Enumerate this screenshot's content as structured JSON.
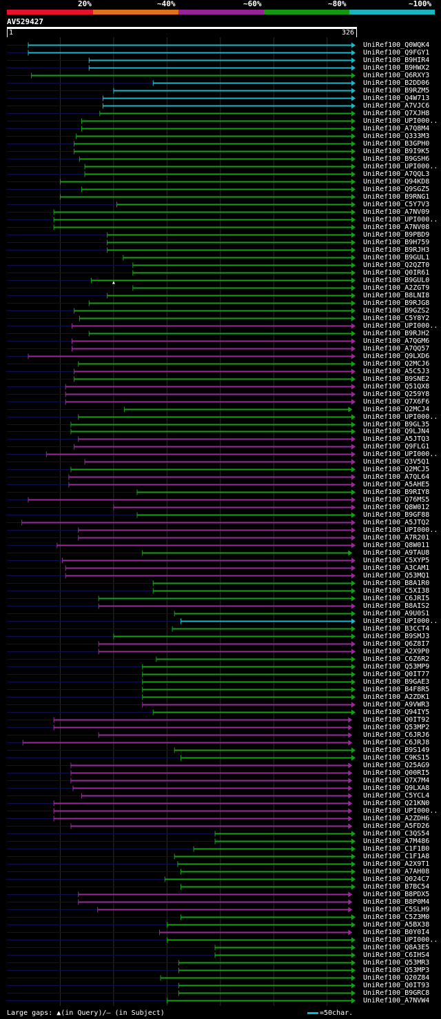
{
  "legend": [
    {
      "label": "20%",
      "color": "#e8102a"
    },
    {
      "label": "~40%",
      "color": "#e0701c"
    },
    {
      "label": "~60%",
      "color": "#992299"
    },
    {
      "label": "~80%",
      "color": "#119911"
    },
    {
      "label": "~100%",
      "color": "#18b6c0"
    }
  ],
  "query": {
    "id": "AV529427",
    "start": "1",
    "end": "326"
  },
  "colors": {
    "cyan": "#1ab8c8",
    "green": "#15a015",
    "purple": "#9a2a9a",
    "faint": "#0b0f4e",
    "gridline": "#2b2b2b"
  },
  "hits": [
    {
      "id": "UniRef100_Q0WQK4",
      "c": "cyan",
      "s": 20,
      "e": 326,
      "g": []
    },
    {
      "id": "UniRef100_Q9FGY1",
      "c": "cyan",
      "s": 20,
      "e": 326,
      "g": []
    },
    {
      "id": "UniRef100_B9HIR4",
      "c": "cyan",
      "s": 77,
      "e": 326,
      "g": []
    },
    {
      "id": "UniRef100_B9HWX2",
      "c": "cyan",
      "s": 77,
      "e": 326,
      "g": []
    },
    {
      "id": "UniRef100_Q6RXY3",
      "c": "green",
      "s": 23,
      "e": 326,
      "g": []
    },
    {
      "id": "UniRef100_B2DD06",
      "c": "cyan",
      "s": 137,
      "e": 326,
      "g": []
    },
    {
      "id": "UniRef100_B9RZM5",
      "c": "cyan",
      "s": 100,
      "e": 326,
      "g": []
    },
    {
      "id": "UniRef100_Q4W713",
      "c": "cyan",
      "s": 90,
      "e": 326,
      "g": []
    },
    {
      "id": "UniRef100_A7VJC6",
      "c": "cyan",
      "s": 90,
      "e": 326,
      "g": []
    },
    {
      "id": "UniRef100_Q7XJH8",
      "c": "green",
      "s": 87,
      "e": 326,
      "g": []
    },
    {
      "id": "UniRef100_UPI000..",
      "c": "green",
      "s": 70,
      "e": 326,
      "g": []
    },
    {
      "id": "UniRef100_A7Q8M4",
      "c": "green",
      "s": 70,
      "e": 326,
      "g": []
    },
    {
      "id": "UniRef100_Q333M3",
      "c": "green",
      "s": 65,
      "e": 326,
      "g": []
    },
    {
      "id": "UniRef100_B3GPH0",
      "c": "green",
      "s": 63,
      "e": 326,
      "g": []
    },
    {
      "id": "UniRef100_B9I9K5",
      "c": "green",
      "s": 63,
      "e": 326,
      "g": []
    },
    {
      "id": "UniRef100_B9GSH6",
      "c": "green",
      "s": 68,
      "e": 326,
      "g": []
    },
    {
      "id": "UniRef100_UPI000..",
      "c": "green",
      "s": 73,
      "e": 326,
      "g": []
    },
    {
      "id": "UniRef100_A7QQL3",
      "c": "green",
      "s": 73,
      "e": 326,
      "g": []
    },
    {
      "id": "UniRef100_Q94KD8",
      "c": "green",
      "s": 50,
      "e": 326,
      "g": []
    },
    {
      "id": "UniRef100_Q9SGZ5",
      "c": "green",
      "s": 70,
      "e": 326,
      "g": []
    },
    {
      "id": "UniRef100_B9RNG1",
      "c": "green",
      "s": 50,
      "e": 326,
      "g": []
    },
    {
      "id": "UniRef100_C5Y7V3",
      "c": "green",
      "s": 103,
      "e": 326,
      "g": []
    },
    {
      "id": "UniRef100_A7NV09",
      "c": "green",
      "s": 44,
      "e": 326,
      "g": []
    },
    {
      "id": "UniRef100_UPI000..",
      "c": "green",
      "s": 44,
      "e": 326,
      "g": []
    },
    {
      "id": "UniRef100_A7NV08",
      "c": "green",
      "s": 44,
      "e": 326,
      "g": []
    },
    {
      "id": "UniRef100_B9PBD9",
      "c": "green",
      "s": 94,
      "e": 326,
      "g": []
    },
    {
      "id": "UniRef100_B9H759",
      "c": "green",
      "s": 94,
      "e": 326,
      "g": []
    },
    {
      "id": "UniRef100_B9RJH3",
      "c": "green",
      "s": 94,
      "e": 326,
      "g": []
    },
    {
      "id": "UniRef100_B9GUL1",
      "c": "green",
      "s": 109,
      "e": 326,
      "g": []
    },
    {
      "id": "UniRef100_Q2QZT0",
      "c": "green",
      "s": 118,
      "e": 326,
      "g": []
    },
    {
      "id": "UniRef100_Q0IR61",
      "c": "green",
      "s": 118,
      "e": 326,
      "g": []
    },
    {
      "id": "UniRef100_B9GUL0",
      "c": "green",
      "s": 79,
      "e": 326,
      "g": [
        100
      ]
    },
    {
      "id": "UniRef100_A2ZGT9",
      "c": "green",
      "s": 118,
      "e": 326,
      "g": []
    },
    {
      "id": "UniRef100_B8LNI8",
      "c": "green",
      "s": 94,
      "e": 326,
      "g": []
    },
    {
      "id": "UniRef100_B9RJG8",
      "c": "green",
      "s": 77,
      "e": 326,
      "g": []
    },
    {
      "id": "UniRef100_B9GZS2",
      "c": "green",
      "s": 63,
      "e": 326,
      "g": []
    },
    {
      "id": "UniRef100_C5Y8Y2",
      "c": "green",
      "s": 68,
      "e": 326,
      "g": []
    },
    {
      "id": "UniRef100_UPI000..",
      "c": "purple",
      "s": 61,
      "e": 326,
      "g": []
    },
    {
      "id": "UniRef100_B9RJH2",
      "c": "green",
      "s": 77,
      "e": 326,
      "g": []
    },
    {
      "id": "UniRef100_A7QGM6",
      "c": "purple",
      "s": 61,
      "e": 326,
      "g": []
    },
    {
      "id": "UniRef100_A7QQ57",
      "c": "purple",
      "s": 61,
      "e": 326,
      "g": []
    },
    {
      "id": "UniRef100_Q9LXD6",
      "c": "purple",
      "s": 20,
      "e": 326,
      "g": []
    },
    {
      "id": "UniRef100_Q2MCJ6",
      "c": "green",
      "s": 67,
      "e": 326,
      "g": []
    },
    {
      "id": "UniRef100_A5C5J3",
      "c": "purple",
      "s": 63,
      "e": 326,
      "g": []
    },
    {
      "id": "UniRef100_B9SNE2",
      "c": "green",
      "s": 63,
      "e": 326,
      "g": []
    },
    {
      "id": "UniRef100_Q51QX8",
      "c": "purple",
      "s": 55,
      "e": 326,
      "g": []
    },
    {
      "id": "UniRef100_Q259Y8",
      "c": "purple",
      "s": 55,
      "e": 326,
      "g": []
    },
    {
      "id": "UniRef100_Q7X6F6",
      "c": "purple",
      "s": 55,
      "e": 326,
      "g": []
    },
    {
      "id": "UniRef100_Q2MCJ4",
      "c": "green",
      "s": 110,
      "e": 323,
      "g": []
    },
    {
      "id": "UniRef100_UPI000..",
      "c": "green",
      "s": 67,
      "e": 326,
      "g": []
    },
    {
      "id": "UniRef100_B9GL35",
      "c": "green",
      "s": 60,
      "e": 326,
      "g": []
    },
    {
      "id": "UniRef100_Q9LJN4",
      "c": "green",
      "s": 60,
      "e": 326,
      "g": []
    },
    {
      "id": "UniRef100_A5JTQ3",
      "c": "purple",
      "s": 67,
      "e": 326,
      "g": []
    },
    {
      "id": "UniRef100_Q9FLG1",
      "c": "purple",
      "s": 63,
      "e": 326,
      "g": []
    },
    {
      "id": "UniRef100_UPI000..",
      "c": "purple",
      "s": 37,
      "e": 326,
      "g": []
    },
    {
      "id": "UniRef100_Q3V5Q1",
      "c": "purple",
      "s": 73,
      "e": 326,
      "g": []
    },
    {
      "id": "UniRef100_Q2MCJ5",
      "c": "green",
      "s": 60,
      "e": 326,
      "g": []
    },
    {
      "id": "UniRef100_A7QL64",
      "c": "purple",
      "s": 58,
      "e": 326,
      "g": []
    },
    {
      "id": "UniRef100_A5AHE5",
      "c": "purple",
      "s": 58,
      "e": 326,
      "g": []
    },
    {
      "id": "UniRef100_B9RIY8",
      "c": "green",
      "s": 122,
      "e": 326,
      "g": []
    },
    {
      "id": "UniRef100_Q76MS5",
      "c": "purple",
      "s": 20,
      "e": 326,
      "g": []
    },
    {
      "id": "UniRef100_Q8W012",
      "c": "purple",
      "s": 100,
      "e": 326,
      "g": []
    },
    {
      "id": "UniRef100_B9GF88",
      "c": "green",
      "s": 122,
      "e": 326,
      "g": []
    },
    {
      "id": "UniRef100_A5JTQ2",
      "c": "purple",
      "s": 14,
      "e": 326,
      "g": []
    },
    {
      "id": "UniRef100_UPI000..",
      "c": "purple",
      "s": 67,
      "e": 326,
      "g": []
    },
    {
      "id": "UniRef100_A7R201",
      "c": "purple",
      "s": 67,
      "e": 326,
      "g": []
    },
    {
      "id": "UniRef100_Q8W011",
      "c": "purple",
      "s": 47,
      "e": 326,
      "g": []
    },
    {
      "id": "UniRef100_A9TAU8",
      "c": "green",
      "s": 127,
      "e": 323,
      "g": []
    },
    {
      "id": "UniRef100_C5XYP5",
      "c": "purple",
      "s": 52,
      "e": 326,
      "g": []
    },
    {
      "id": "UniRef100_A3CAM1",
      "c": "purple",
      "s": 55,
      "e": 326,
      "g": []
    },
    {
      "id": "UniRef100_Q53MQ1",
      "c": "purple",
      "s": 55,
      "e": 326,
      "g": []
    },
    {
      "id": "UniRef100_B8A1R0",
      "c": "green",
      "s": 137,
      "e": 326,
      "g": []
    },
    {
      "id": "UniRef100_C5XI38",
      "c": "green",
      "s": 137,
      "e": 326,
      "g": []
    },
    {
      "id": "UniRef100_C6JRI5",
      "c": "green",
      "s": 86,
      "e": 326,
      "g": []
    },
    {
      "id": "UniRef100_B8AIS2",
      "c": "purple",
      "s": 86,
      "e": 326,
      "g": []
    },
    {
      "id": "UniRef100_A9U0S1",
      "c": "green",
      "s": 157,
      "e": 326,
      "g": []
    },
    {
      "id": "UniRef100_UPI000..",
      "c": "cyan",
      "s": 163,
      "e": 326,
      "g": []
    },
    {
      "id": "UniRef100_B3CCT4",
      "c": "green",
      "s": 155,
      "e": 326,
      "g": []
    },
    {
      "id": "UniRef100_B9SMJ3",
      "c": "green",
      "s": 100,
      "e": 326,
      "g": []
    },
    {
      "id": "UniRef100_Q6Z8I7",
      "c": "purple",
      "s": 86,
      "e": 326,
      "g": []
    },
    {
      "id": "UniRef100_A2X9P0",
      "c": "purple",
      "s": 86,
      "e": 326,
      "g": []
    },
    {
      "id": "UniRef100_C6Z6R2",
      "c": "green",
      "s": 140,
      "e": 326,
      "g": []
    },
    {
      "id": "UniRef100_Q53MP9",
      "c": "green",
      "s": 127,
      "e": 326,
      "g": []
    },
    {
      "id": "UniRef100_Q0IT77",
      "c": "green",
      "s": 127,
      "e": 326,
      "g": []
    },
    {
      "id": "UniRef100_B9GAE3",
      "c": "green",
      "s": 127,
      "e": 326,
      "g": []
    },
    {
      "id": "UniRef100_B4F8R5",
      "c": "green",
      "s": 127,
      "e": 326,
      "g": []
    },
    {
      "id": "UniRef100_A2ZDK1",
      "c": "green",
      "s": 127,
      "e": 326,
      "g": []
    },
    {
      "id": "UniRef100_A9VWR3",
      "c": "purple",
      "s": 127,
      "e": 326,
      "g": []
    },
    {
      "id": "UniRef100_Q94IY5",
      "c": "green",
      "s": 137,
      "e": 326,
      "g": []
    },
    {
      "id": "UniRef100_Q0IT92",
      "c": "purple",
      "s": 44,
      "e": 323,
      "g": []
    },
    {
      "id": "UniRef100_Q53MP2",
      "c": "purple",
      "s": 44,
      "e": 323,
      "g": []
    },
    {
      "id": "UniRef100_C6JRJ6",
      "c": "purple",
      "s": 86,
      "e": 323,
      "g": []
    },
    {
      "id": "UniRef100_C6JRJ8",
      "c": "purple",
      "s": 15,
      "e": 323,
      "g": []
    },
    {
      "id": "UniRef100_B9S149",
      "c": "green",
      "s": 157,
      "e": 326,
      "g": []
    },
    {
      "id": "UniRef100_C9KS15",
      "c": "green",
      "s": 163,
      "e": 326,
      "g": []
    },
    {
      "id": "UniRef100_Q25AG9",
      "c": "purple",
      "s": 60,
      "e": 323,
      "g": []
    },
    {
      "id": "UniRef100_Q00RI5",
      "c": "purple",
      "s": 60,
      "e": 323,
      "g": []
    },
    {
      "id": "UniRef100_Q7X7M4",
      "c": "purple",
      "s": 60,
      "e": 323,
      "g": []
    },
    {
      "id": "UniRef100_Q9LXA8",
      "c": "purple",
      "s": 62,
      "e": 323,
      "g": []
    },
    {
      "id": "UniRef100_C5YCL4",
      "c": "purple",
      "s": 70,
      "e": 323,
      "g": []
    },
    {
      "id": "UniRef100_Q21KN0",
      "c": "purple",
      "s": 44,
      "e": 323,
      "g": []
    },
    {
      "id": "UniRef100_UPI000..",
      "c": "purple",
      "s": 44,
      "e": 323,
      "g": []
    },
    {
      "id": "UniRef100_A2ZDH6",
      "c": "purple",
      "s": 44,
      "e": 323,
      "g": []
    },
    {
      "id": "UniRef100_A5FD26",
      "c": "purple",
      "s": 60,
      "e": 323,
      "g": []
    },
    {
      "id": "UniRef100_C3QS54",
      "c": "green",
      "s": 195,
      "e": 326,
      "g": []
    },
    {
      "id": "UniRef100_A7M486",
      "c": "green",
      "s": 195,
      "e": 326,
      "g": []
    },
    {
      "id": "UniRef100_C1F1B0",
      "c": "green",
      "s": 175,
      "e": 326,
      "g": []
    },
    {
      "id": "UniRef100_C1F1A8",
      "c": "green",
      "s": 157,
      "e": 326,
      "g": []
    },
    {
      "id": "UniRef100_A2X9T1",
      "c": "green",
      "s": 160,
      "e": 326,
      "g": []
    },
    {
      "id": "UniRef100_A7AH08",
      "c": "green",
      "s": 163,
      "e": 326,
      "g": []
    },
    {
      "id": "UniRef100_Q024C7",
      "c": "green",
      "s": 148,
      "e": 326,
      "g": []
    },
    {
      "id": "UniRef100_B7BC54",
      "c": "green",
      "s": 163,
      "e": 326,
      "g": []
    },
    {
      "id": "UniRef100_B8PDX5",
      "c": "purple",
      "s": 67,
      "e": 323,
      "g": []
    },
    {
      "id": "UniRef100_B8P0M4",
      "c": "purple",
      "s": 67,
      "e": 323,
      "g": []
    },
    {
      "id": "UniRef100_C5SLH9",
      "c": "purple",
      "s": 85,
      "e": 323,
      "g": []
    },
    {
      "id": "UniRef100_C5Z3M0",
      "c": "green",
      "s": 163,
      "e": 326,
      "g": []
    },
    {
      "id": "UniRef100_A5BX38",
      "c": "green",
      "s": 150,
      "e": 326,
      "g": []
    },
    {
      "id": "UniRef100_B0Y0I4",
      "c": "purple",
      "s": 143,
      "e": 323,
      "g": []
    },
    {
      "id": "UniRef100_UPI000..",
      "c": "green",
      "s": 150,
      "e": 326,
      "g": []
    },
    {
      "id": "UniRef100_Q8A3E5",
      "c": "green",
      "s": 195,
      "e": 326,
      "g": []
    },
    {
      "id": "UniRef100_C6IHS4",
      "c": "green",
      "s": 195,
      "e": 326,
      "g": []
    },
    {
      "id": "UniRef100_Q53MR3",
      "c": "green",
      "s": 161,
      "e": 326,
      "g": []
    },
    {
      "id": "UniRef100_Q53MP3",
      "c": "green",
      "s": 161,
      "e": 326,
      "g": []
    },
    {
      "id": "UniRef100_Q20Z84",
      "c": "green",
      "s": 144,
      "e": 326,
      "g": []
    },
    {
      "id": "UniRef100_Q0IT93",
      "c": "green",
      "s": 161,
      "e": 326,
      "g": []
    },
    {
      "id": "UniRef100_B9GRC8",
      "c": "green",
      "s": 161,
      "e": 326,
      "g": []
    },
    {
      "id": "UniRef100_A7NVW4",
      "c": "green",
      "s": 150,
      "e": 326,
      "g": []
    }
  ],
  "footer": {
    "gaps": "Large gaps: ▲(in Query)/— (in Subject)",
    "scale": "=50char."
  }
}
